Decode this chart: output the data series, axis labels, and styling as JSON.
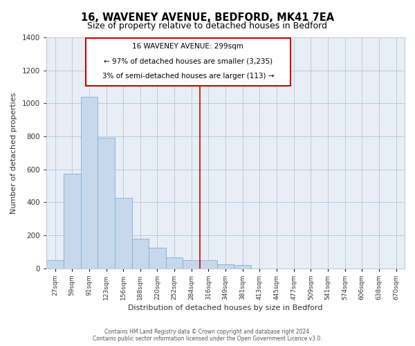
{
  "title": "16, WAVENEY AVENUE, BEDFORD, MK41 7EA",
  "subtitle": "Size of property relative to detached houses in Bedford",
  "xlabel": "Distribution of detached houses by size in Bedford",
  "ylabel": "Number of detached properties",
  "bar_color": "#c8d8ec",
  "bar_edge_color": "#7aafd4",
  "background_color": "#ffffff",
  "plot_bg_color": "#e8eef6",
  "bin_labels": [
    "27sqm",
    "59sqm",
    "91sqm",
    "123sqm",
    "156sqm",
    "188sqm",
    "220sqm",
    "252sqm",
    "284sqm",
    "316sqm",
    "349sqm",
    "381sqm",
    "413sqm",
    "445sqm",
    "477sqm",
    "509sqm",
    "541sqm",
    "574sqm",
    "606sqm",
    "638sqm",
    "670sqm"
  ],
  "bar_heights": [
    50,
    575,
    1040,
    790,
    425,
    180,
    125,
    65,
    50,
    50,
    25,
    20,
    0,
    0,
    0,
    0,
    0,
    0,
    0,
    0,
    0
  ],
  "ylim": [
    0,
    1400
  ],
  "yticks": [
    0,
    200,
    400,
    600,
    800,
    1000,
    1200,
    1400
  ],
  "property_line_x": 8.5,
  "annotation_title": "16 WAVENEY AVENUE: 299sqm",
  "annotation_line1": "← 97% of detached houses are smaller (3,235)",
  "annotation_line2": "3% of semi-detached houses are larger (113) →",
  "footer_line1": "Contains HM Land Registry data © Crown copyright and database right 2024.",
  "footer_line2": "Contains public sector information licensed under the Open Government Licence v3.0.",
  "grid_color": "#c0c8d8"
}
